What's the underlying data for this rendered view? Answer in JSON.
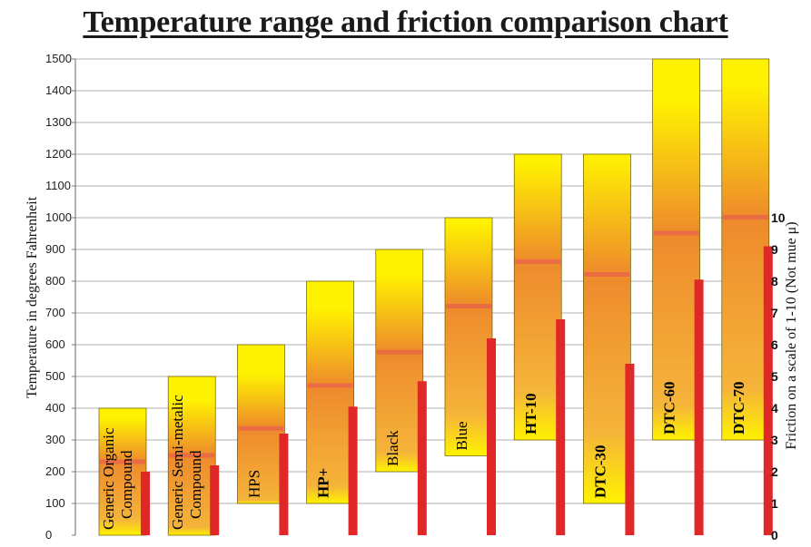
{
  "chart_data": {
    "type": "bar",
    "title": "Temperature range and friction comparison chart",
    "ylabel": "Temperature in degrees Fahrenheit",
    "y2label": "Friction on a scale of 1-10 (Not mue μ)",
    "ylim": [
      0,
      1500
    ],
    "y2lim": [
      0,
      10
    ],
    "yticks": [
      0,
      100,
      200,
      300,
      400,
      500,
      600,
      700,
      800,
      900,
      1000,
      1100,
      1200,
      1300,
      1400,
      1500
    ],
    "y2ticks": [
      0,
      1,
      2,
      3,
      4,
      5,
      6,
      7,
      8,
      9,
      10
    ],
    "grid": true,
    "categories": [
      {
        "label": "Generic Organic\nCompound",
        "bold": false
      },
      {
        "label": "Generic Semi-metalic\nCompound",
        "bold": false
      },
      {
        "label": "HPS",
        "bold": false
      },
      {
        "label": "HP+",
        "bold": true
      },
      {
        "label": "Black",
        "bold": false
      },
      {
        "label": "Blue",
        "bold": false
      },
      {
        "label": "HT-10",
        "bold": true
      },
      {
        "label": "DTC-30",
        "bold": true
      },
      {
        "label": "DTC-60",
        "bold": true
      },
      {
        "label": "DTC-70",
        "bold": true
      }
    ],
    "series": [
      {
        "type": "range",
        "temperature_min": [
          0,
          0,
          100,
          100,
          200,
          250,
          300,
          100,
          300,
          300
        ],
        "temperature_max": [
          400,
          500,
          600,
          800,
          900,
          1000,
          1200,
          1200,
          1500,
          1500
        ],
        "peak_marker": [
          230,
          250,
          335,
          470,
          575,
          720,
          860,
          820,
          950,
          1000
        ]
      },
      {
        "type": "bar",
        "friction": [
          2,
          2.2,
          3.2,
          4.05,
          4.85,
          6.2,
          6.8,
          5.4,
          8.05,
          9.1
        ]
      }
    ],
    "colors": {
      "range_yellow": "#fff200",
      "range_orange": "#ee8a2c",
      "friction_bar": "#e02828",
      "peak_line": "#e8624a",
      "grid": "#999999"
    }
  }
}
